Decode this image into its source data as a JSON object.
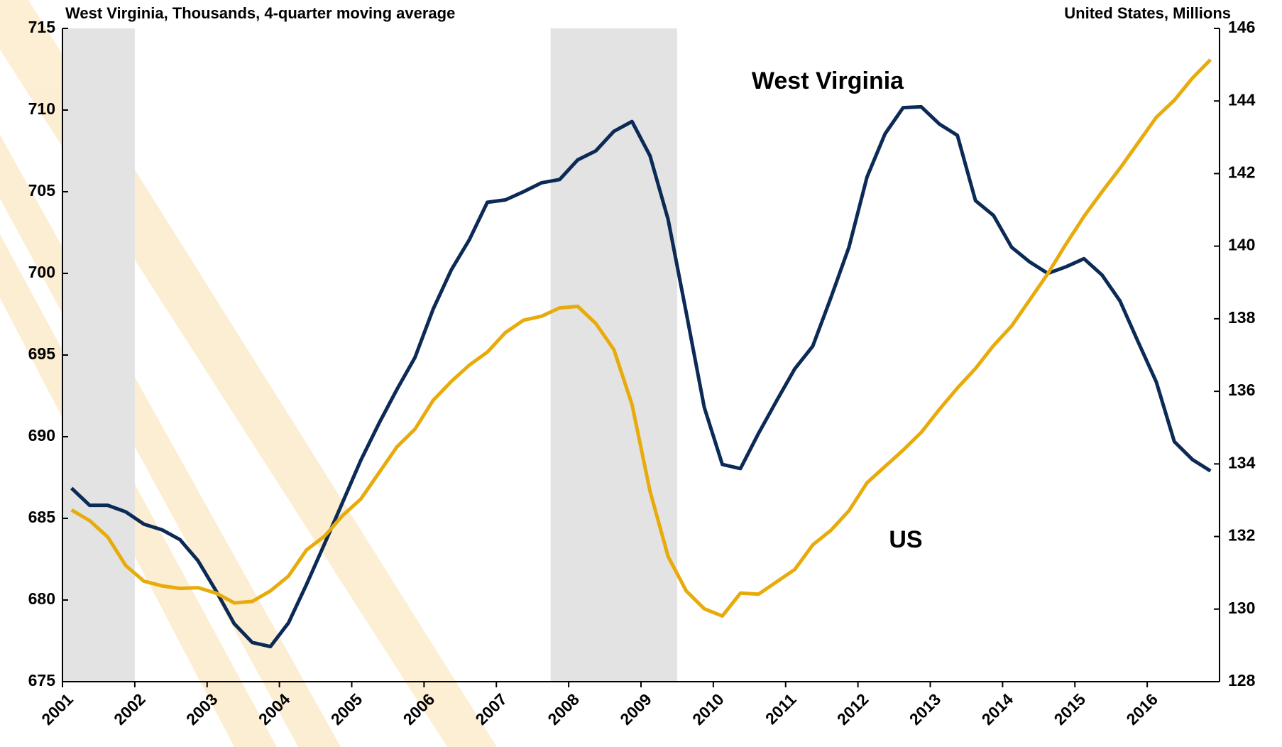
{
  "chart_data": {
    "type": "line",
    "left_header": "West Virginia, Thousands, 4-quarter moving average",
    "right_header": "United States, Millions",
    "annotations": [
      {
        "text": "West Virginia"
      },
      {
        "text": "US"
      }
    ],
    "categories": [
      "2001",
      null,
      null,
      null,
      "2002",
      null,
      null,
      null,
      "2003",
      null,
      null,
      null,
      "2004",
      null,
      null,
      null,
      "2005",
      null,
      null,
      null,
      "2006",
      null,
      null,
      null,
      "2007",
      null,
      null,
      null,
      "2008",
      null,
      null,
      null,
      "2009",
      null,
      null,
      null,
      "2010",
      null,
      null,
      null,
      "2011",
      null,
      null,
      null,
      "2012",
      null,
      null,
      null,
      "2013",
      null,
      null,
      null,
      "2014",
      null,
      null,
      null,
      "2015",
      null,
      null,
      null,
      "2016",
      null,
      null,
      null
    ],
    "xlim": [
      2001,
      2017
    ],
    "recessions": [
      [
        2001,
        2002
      ],
      [
        2007.75,
        2009.5
      ]
    ],
    "recession_color": "#e3e3e3",
    "series": [
      {
        "name": "West Virginia",
        "color": "#0b2a55",
        "axis": "y",
        "values": [
          686.85,
          685.8,
          685.8,
          685.4,
          684.65,
          684.3,
          683.7,
          682.4,
          680.55,
          678.55,
          677.4,
          677.15,
          678.6,
          680.95,
          683.45,
          686.0,
          688.55,
          690.8,
          692.9,
          694.85,
          697.8,
          700.2,
          702.05,
          704.35,
          704.5,
          705.0,
          705.55,
          705.75,
          706.95,
          707.5,
          708.7,
          709.3,
          707.2,
          703.3,
          697.6,
          691.8,
          688.3,
          688.05,
          690.2,
          692.2,
          694.15,
          695.55,
          698.5,
          701.6,
          705.9,
          708.55,
          710.15,
          710.2,
          709.15,
          708.45,
          704.45,
          703.55,
          701.6,
          700.7,
          700.0,
          700.4,
          700.9,
          699.9,
          698.3,
          695.8,
          693.35,
          689.7,
          688.6,
          687.9
        ]
      },
      {
        "name": "US",
        "color": "#e8ab0c",
        "axis": "y2",
        "values": [
          132.73,
          132.44,
          131.99,
          131.2,
          130.77,
          130.64,
          130.57,
          130.59,
          130.44,
          130.17,
          130.21,
          130.5,
          130.91,
          131.63,
          132.01,
          132.58,
          133.03,
          133.75,
          134.47,
          134.96,
          135.75,
          136.27,
          136.72,
          137.08,
          137.62,
          137.96,
          138.07,
          138.3,
          138.34,
          137.87,
          137.15,
          135.64,
          133.25,
          131.45,
          130.5,
          130.01,
          129.81,
          130.44,
          130.41,
          130.75,
          131.09,
          131.77,
          132.17,
          132.71,
          133.48,
          133.93,
          134.38,
          134.87,
          135.5,
          136.09,
          136.63,
          137.26,
          137.8,
          138.52,
          139.24,
          140.05,
          140.82,
          141.5,
          142.15,
          142.85,
          143.55,
          144.02,
          144.63,
          145.14
        ]
      }
    ],
    "ylim": [
      675,
      715
    ],
    "yticks": [
      675,
      680,
      685,
      690,
      695,
      700,
      705,
      710,
      715
    ],
    "y2lim": [
      128,
      146
    ],
    "y2ticks": [
      128,
      130,
      132,
      134,
      136,
      138,
      140,
      142,
      144,
      146
    ]
  }
}
